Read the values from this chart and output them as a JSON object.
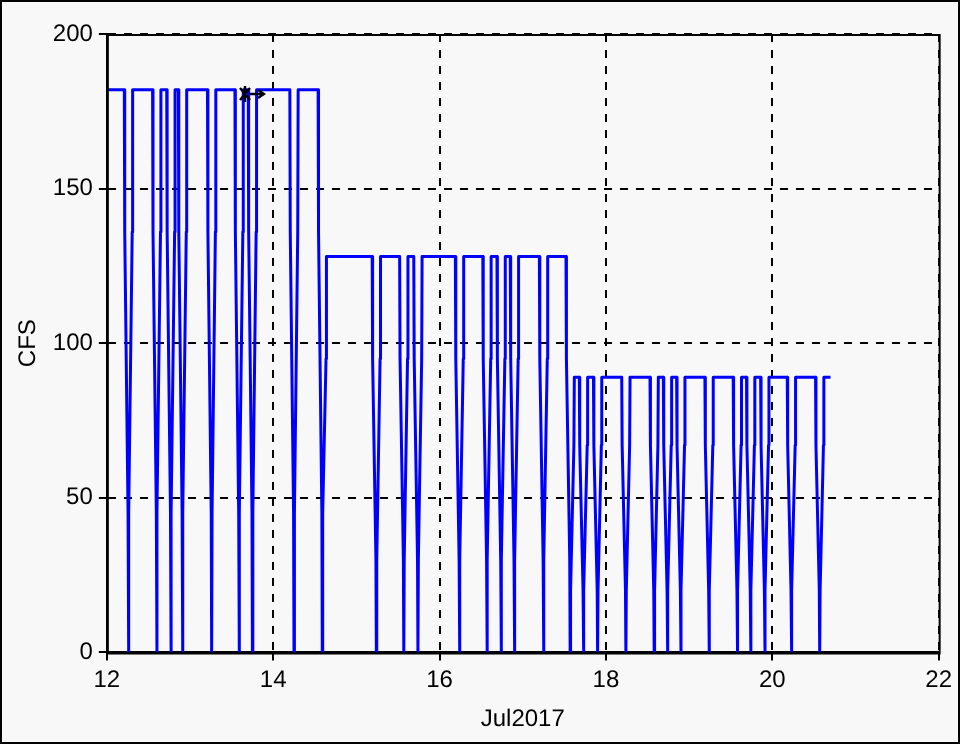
{
  "chart_data": {
    "type": "line",
    "xlabel": "Jul2017",
    "ylabel": "CFS",
    "xlim": [
      12,
      22
    ],
    "xticks": [
      12,
      14,
      16,
      18,
      20,
      22
    ],
    "ylim": [
      0,
      200
    ],
    "yticks": [
      0,
      50,
      100,
      150,
      200
    ],
    "grid": true,
    "marker": "none",
    "line_style": "solid",
    "series": [
      {
        "color": "#0000ff",
        "x": [
          12.005,
          12.21,
          12.215,
          12.255,
          12.26,
          12.265,
          12.305,
          12.31,
          12.55,
          12.555,
          12.595,
          12.6,
          12.605,
          12.645,
          12.65,
          12.72,
          12.725,
          12.765,
          12.77,
          12.775,
          12.815,
          12.82,
          12.86,
          12.865,
          12.905,
          12.91,
          12.915,
          12.955,
          12.96,
          13.21,
          13.215,
          13.255,
          13.26,
          13.265,
          13.305,
          13.31,
          13.54,
          13.545,
          13.585,
          13.59,
          13.595,
          13.635,
          13.64,
          13.7,
          13.705,
          13.745,
          13.75,
          13.755,
          13.795,
          13.8,
          14.2,
          14.205,
          14.245,
          14.25,
          14.255,
          14.295,
          14.3,
          14.54,
          14.545,
          14.585,
          14.59,
          14.595,
          14.635,
          14.64,
          15.19,
          15.195,
          15.235,
          15.24,
          15.245,
          15.285,
          15.29,
          15.52,
          15.525,
          15.565,
          15.57,
          15.575,
          15.615,
          15.62,
          15.69,
          15.695,
          15.735,
          15.74,
          15.745,
          15.785,
          15.79,
          16.19,
          16.195,
          16.235,
          16.24,
          16.245,
          16.285,
          16.29,
          16.52,
          16.525,
          16.565,
          16.57,
          16.575,
          16.615,
          16.62,
          16.69,
          16.695,
          16.735,
          16.74,
          16.745,
          16.785,
          16.79,
          16.85,
          16.855,
          16.895,
          16.9,
          16.905,
          16.945,
          16.95,
          17.2,
          17.205,
          17.245,
          17.25,
          17.255,
          17.295,
          17.3,
          17.52,
          17.525,
          17.565,
          17.57,
          17.575,
          17.615,
          17.62,
          17.68,
          17.685,
          17.725,
          17.73,
          17.735,
          17.775,
          17.78,
          17.85,
          17.855,
          17.895,
          17.9,
          17.905,
          17.945,
          17.95,
          18.19,
          18.195,
          18.235,
          18.24,
          18.245,
          18.285,
          18.29,
          18.53,
          18.535,
          18.575,
          18.58,
          18.585,
          18.625,
          18.63,
          18.69,
          18.695,
          18.735,
          18.74,
          18.745,
          18.785,
          18.79,
          18.85,
          18.855,
          18.895,
          18.9,
          18.905,
          18.945,
          18.95,
          19.19,
          19.195,
          19.235,
          19.24,
          19.245,
          19.285,
          19.29,
          19.53,
          19.535,
          19.575,
          19.58,
          19.585,
          19.625,
          19.63,
          19.69,
          19.695,
          19.735,
          19.74,
          19.745,
          19.785,
          19.79,
          19.86,
          19.865,
          19.905,
          19.91,
          19.915,
          19.955,
          19.96,
          20.18,
          20.185,
          20.225,
          20.23,
          20.235,
          20.275,
          20.28,
          20.52,
          20.525,
          20.565,
          20.57,
          20.575,
          20.615,
          20.62,
          20.7
        ],
        "values": [
          182,
          182,
          136,
          45,
          0,
          45,
          136,
          182,
          182,
          136,
          45,
          0,
          45,
          136,
          182,
          182,
          136,
          45,
          0,
          45,
          136,
          182,
          182,
          136,
          45,
          0,
          45,
          136,
          182,
          182,
          136,
          45,
          0,
          45,
          136,
          182,
          182,
          136,
          45,
          0,
          45,
          136,
          182,
          182,
          136,
          45,
          0,
          45,
          136,
          182,
          182,
          136,
          45,
          0,
          45,
          136,
          182,
          182,
          136,
          45,
          0,
          45,
          95,
          128,
          128,
          95,
          30,
          0,
          30,
          95,
          128,
          128,
          95,
          30,
          0,
          30,
          95,
          128,
          128,
          95,
          30,
          0,
          30,
          95,
          128,
          128,
          95,
          30,
          0,
          30,
          95,
          128,
          128,
          95,
          30,
          0,
          30,
          95,
          128,
          128,
          95,
          30,
          0,
          30,
          95,
          128,
          128,
          95,
          30,
          0,
          30,
          95,
          128,
          128,
          95,
          30,
          0,
          30,
          95,
          128,
          128,
          95,
          30,
          0,
          20,
          67,
          89,
          89,
          67,
          20,
          0,
          20,
          67,
          89,
          89,
          67,
          20,
          0,
          20,
          67,
          89,
          89,
          67,
          20,
          0,
          20,
          67,
          89,
          89,
          67,
          20,
          0,
          20,
          67,
          89,
          89,
          67,
          20,
          0,
          20,
          67,
          89,
          89,
          67,
          20,
          0,
          20,
          67,
          89,
          89,
          67,
          20,
          0,
          20,
          67,
          89,
          89,
          67,
          20,
          0,
          20,
          67,
          89,
          89,
          67,
          20,
          0,
          20,
          67,
          89,
          89,
          67,
          20,
          0,
          20,
          67,
          89,
          89,
          67,
          20,
          0,
          20,
          67,
          89,
          89,
          67,
          20,
          0,
          20,
          67,
          89,
          89
        ]
      }
    ]
  }
}
